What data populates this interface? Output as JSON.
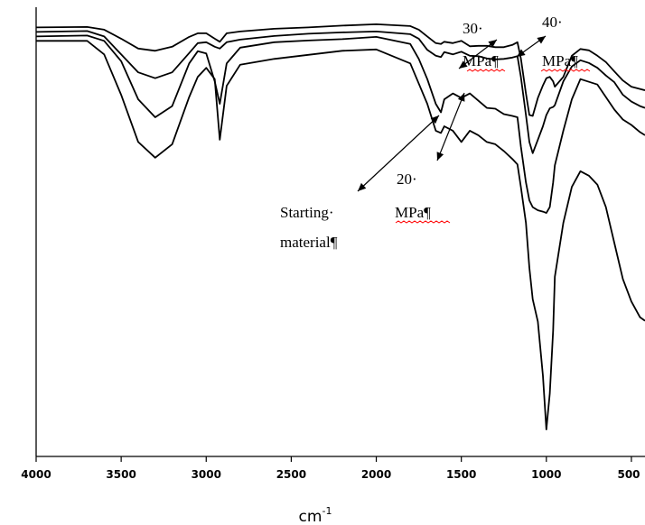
{
  "chart_data": {
    "type": "line",
    "title": "",
    "xlabel": "cm",
    "xlabel_sup": "-1",
    "ylabel": "",
    "x_reversed": true,
    "xlim": [
      4000,
      420
    ],
    "ylim": [
      0,
      100
    ],
    "x_ticks": [
      4000,
      3500,
      3000,
      2500,
      2000,
      1500,
      1000,
      500
    ],
    "grid": false,
    "legend": "none",
    "series": [
      {
        "x": [
          4000,
          3700,
          3600,
          3500,
          3400,
          3300,
          3200,
          3100,
          3050,
          3000,
          2950,
          2920,
          2880,
          2800,
          2600,
          2400,
          2200,
          2000,
          1800,
          1750,
          1700,
          1650,
          1620,
          1600,
          1550,
          1500,
          1450,
          1400,
          1350,
          1300,
          1250,
          1200,
          1170,
          1150,
          1120,
          1100,
          1080,
          1050,
          1020,
          1000,
          980,
          960,
          950,
          900,
          850,
          800,
          750,
          700,
          650,
          600,
          550,
          500,
          450,
          420
        ],
        "y": [
          95.5,
          95.6,
          95,
          93,
          90.8,
          90.3,
          91.2,
          93.4,
          94.2,
          94.2,
          93,
          92.3,
          94.2,
          94.6,
          95.2,
          95.5,
          95.9,
          96.2,
          95.8,
          95,
          93.5,
          92,
          91.8,
          92.3,
          92,
          92.5,
          91.3,
          91.4,
          91.4,
          91.1,
          91.1,
          91.6,
          92.2,
          88.6,
          80.8,
          76,
          75.8,
          79.8,
          82.6,
          84.2,
          84.5,
          83.5,
          82.3,
          84.5,
          89.2,
          90.7,
          90.4,
          89.2,
          87.8,
          85.7,
          83.7,
          82.3,
          81.8,
          81.5
        ]
      },
      {
        "x": [
          4000,
          3700,
          3600,
          3500,
          3400,
          3300,
          3200,
          3100,
          3050,
          3000,
          2950,
          2920,
          2880,
          2800,
          2600,
          2400,
          2200,
          2000,
          1800,
          1750,
          1700,
          1650,
          1620,
          1600,
          1550,
          1500,
          1450,
          1400,
          1350,
          1300,
          1250,
          1200,
          1170,
          1150,
          1120,
          1100,
          1080,
          1050,
          1020,
          1000,
          980,
          960,
          950,
          900,
          850,
          800,
          750,
          700,
          650,
          600,
          550,
          500,
          450,
          420
        ],
        "y": [
          94.5,
          94.7,
          93.5,
          89.5,
          85.5,
          84.2,
          85.5,
          89.8,
          92,
          92.2,
          91.2,
          90.8,
          92.2,
          92.8,
          93.6,
          94.1,
          94.4,
          94.6,
          94,
          93,
          90.5,
          89.2,
          88.9,
          90,
          89.5,
          90.1,
          89.2,
          89.1,
          88.6,
          88.4,
          88.5,
          88.8,
          89.1,
          84.5,
          76,
          70,
          67.5,
          70.5,
          73.5,
          76,
          77.5,
          77.8,
          78.2,
          83.5,
          86.8,
          88.2,
          87.6,
          86.5,
          84.8,
          83.3,
          80.5,
          79,
          78,
          77.6
        ]
      },
      {
        "x": [
          4000,
          3700,
          3600,
          3500,
          3400,
          3300,
          3200,
          3100,
          3050,
          3000,
          2950,
          2920,
          2880,
          2800,
          2600,
          2400,
          2200,
          2000,
          1800,
          1750,
          1700,
          1650,
          1620,
          1600,
          1550,
          1500,
          1450,
          1400,
          1350,
          1300,
          1250,
          1200,
          1170,
          1150,
          1120,
          1100,
          1080,
          1050,
          1020,
          1000,
          980,
          960,
          950,
          900,
          850,
          800,
          750,
          700,
          650,
          600,
          550,
          500,
          450,
          420
        ],
        "y": [
          93.5,
          93.7,
          92.5,
          88,
          79.5,
          75.5,
          78,
          87.5,
          90.2,
          89.7,
          83.5,
          78.5,
          87.5,
          91,
          92.2,
          92.6,
          92.9,
          93.4,
          91.8,
          88.5,
          84,
          78.5,
          76.6,
          79.5,
          80.8,
          79.8,
          80.8,
          79.2,
          77.6,
          77.4,
          76.2,
          75.8,
          75.5,
          69,
          61,
          57,
          55.5,
          54.8,
          54.5,
          54.2,
          55.5,
          61,
          64.8,
          72.5,
          79.5,
          84,
          83.4,
          82.8,
          80,
          77.2,
          75,
          73.8,
          72.2,
          71.5
        ]
      },
      {
        "x": [
          4000,
          3700,
          3600,
          3500,
          3400,
          3300,
          3200,
          3100,
          3050,
          3000,
          2950,
          2920,
          2880,
          2800,
          2600,
          2400,
          2200,
          2000,
          1800,
          1750,
          1700,
          1650,
          1620,
          1600,
          1550,
          1500,
          1450,
          1400,
          1350,
          1300,
          1250,
          1200,
          1170,
          1150,
          1120,
          1100,
          1080,
          1050,
          1020,
          1000,
          980,
          960,
          950,
          900,
          850,
          800,
          750,
          700,
          650,
          600,
          550,
          500,
          450,
          420
        ],
        "y": [
          92.5,
          92.5,
          89.5,
          80.5,
          70,
          66.5,
          69.5,
          80,
          84.5,
          86.5,
          84,
          70.5,
          82.5,
          87.2,
          88.5,
          89.4,
          90.3,
          90.6,
          87.5,
          83,
          78.5,
          72.5,
          72,
          73.5,
          72.5,
          70,
          72.5,
          71.5,
          70,
          69.5,
          68,
          66.2,
          65,
          60,
          52,
          42,
          35,
          30,
          18,
          6,
          14,
          28,
          40,
          52,
          60,
          63.5,
          62.5,
          60.5,
          55.5,
          47.5,
          39.5,
          34.5,
          31,
          30.2
        ]
      }
    ],
    "annotations": [
      {
        "lines": [
          "30·",
          "MPa¶"
        ]
      },
      {
        "lines": [
          "40·",
          "MPa¶"
        ]
      },
      {
        "lines": [
          "20·",
          "MPa¶"
        ]
      },
      {
        "lines": [
          "Starting·",
          "material¶"
        ]
      }
    ]
  }
}
